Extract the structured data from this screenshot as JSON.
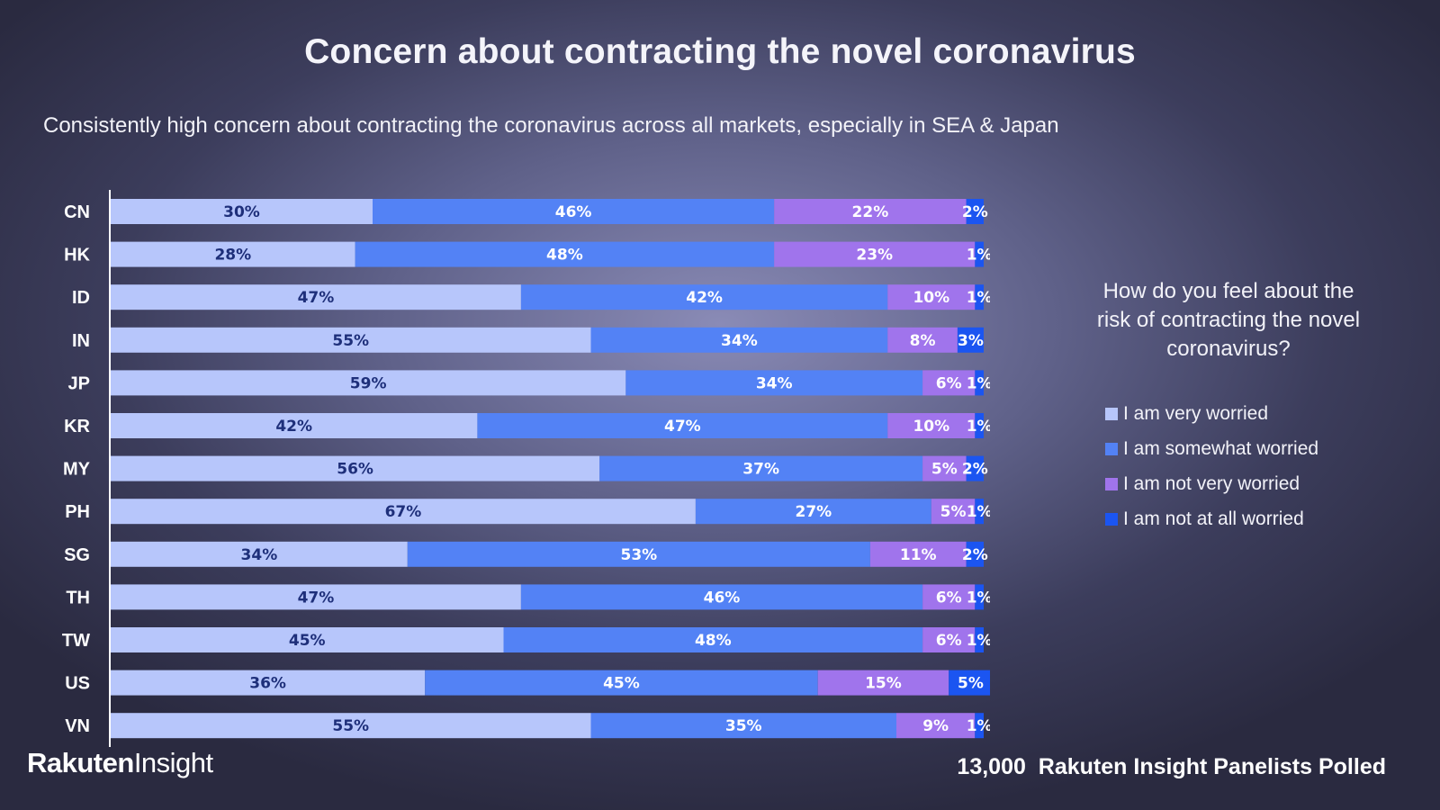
{
  "title": "Concern about contracting the novel coronavirus",
  "subtitle": "Consistently high concern about contracting the coronavirus across all markets, especially in SEA & Japan",
  "legend": {
    "title": "How do you feel about the risk of contracting the novel coronavirus?"
  },
  "footer": {
    "logo_brand": "Rakuten",
    "logo_product": "Insight",
    "poll_count": "13,000",
    "poll_text": "Rakuten Insight Panelists Polled"
  },
  "colors": {
    "very": "#b7c6fb",
    "somewhat": "#5382f5",
    "notvery": "#a074ec",
    "notatall": "#1b55f1",
    "dark_label": "#1e2f7a",
    "light_label": "#ffffff"
  },
  "chart_data": {
    "type": "bar",
    "orientation": "horizontal",
    "stacked": true,
    "title": "Concern about contracting the novel coronavirus",
    "categories": [
      "CN",
      "HK",
      "ID",
      "IN",
      "JP",
      "KR",
      "MY",
      "PH",
      "SG",
      "TH",
      "TW",
      "US",
      "VN"
    ],
    "series": [
      {
        "name": "I am very worried",
        "color": "#b7c6fb",
        "values": [
          30,
          28,
          47,
          55,
          59,
          42,
          56,
          67,
          34,
          47,
          45,
          36,
          55
        ]
      },
      {
        "name": "I am somewhat worried",
        "color": "#5382f5",
        "values": [
          46,
          48,
          42,
          34,
          34,
          47,
          37,
          27,
          53,
          46,
          48,
          45,
          35
        ]
      },
      {
        "name": "I am not very worried",
        "color": "#a074ec",
        "values": [
          22,
          23,
          10,
          8,
          6,
          10,
          5,
          5,
          11,
          6,
          6,
          15,
          9
        ]
      },
      {
        "name": "I am not at all worried",
        "color": "#1b55f1",
        "values": [
          2,
          1,
          1,
          3,
          1,
          1,
          2,
          1,
          2,
          1,
          1,
          5,
          1
        ]
      }
    ],
    "value_suffix": "%",
    "xlim": [
      0,
      100
    ],
    "legend_position": "right"
  }
}
